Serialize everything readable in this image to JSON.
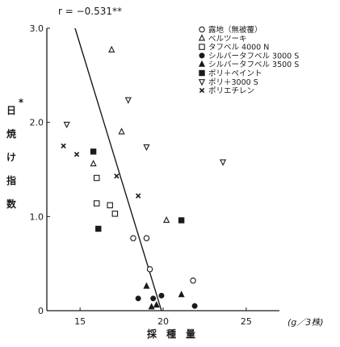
{
  "chart_data": {
    "type": "scatter",
    "xlabel": "採　種　量",
    "xunit": "(g／3株)",
    "ylabel_chars": [
      "日",
      "焼",
      "け",
      "指",
      "数"
    ],
    "ylabel_marker": "*",
    "correlation_label": "r = −0.531**",
    "xlim": [
      13,
      27
    ],
    "ylim": [
      0,
      3.0
    ],
    "xticks": [
      15,
      20,
      25
    ],
    "yticks": [
      0,
      1.0,
      2.0,
      3.0
    ],
    "xtick_labels": [
      "15",
      "20",
      "25"
    ],
    "ytick_labels": [
      "0",
      "1.0",
      "2.0",
      "3.0"
    ],
    "grid": false,
    "legend_position": "top-right",
    "regression_line": {
      "x": [
        14.7,
        19.9
      ],
      "y": [
        3.0,
        0.0
      ]
    },
    "series": [
      {
        "name": "露地（無被覆）",
        "marker": "circle-open",
        "points": [
          [
            19.0,
            0.77
          ],
          [
            18.2,
            0.77
          ],
          [
            19.2,
            0.44
          ],
          [
            21.8,
            0.32
          ]
        ]
      },
      {
        "name": "ベルツーキ",
        "marker": "triangle-open",
        "points": [
          [
            16.9,
            2.77
          ],
          [
            17.5,
            1.9
          ],
          [
            15.8,
            1.56
          ],
          [
            20.2,
            0.96
          ]
        ]
      },
      {
        "name": "タフベル 4000 N",
        "marker": "square-open",
        "points": [
          [
            16.0,
            1.41
          ],
          [
            16.0,
            1.14
          ],
          [
            16.8,
            1.12
          ],
          [
            17.1,
            1.03
          ]
        ]
      },
      {
        "name": "シルバータフベル 3000 S",
        "marker": "circle-filled",
        "points": [
          [
            18.5,
            0.13
          ],
          [
            19.4,
            0.13
          ],
          [
            19.9,
            0.16
          ],
          [
            21.9,
            0.05
          ]
        ]
      },
      {
        "name": "シルバータフベル 3500 S",
        "marker": "triangle-filled",
        "points": [
          [
            19.0,
            0.26
          ],
          [
            21.1,
            0.17
          ],
          [
            19.6,
            0.06
          ],
          [
            19.3,
            0.04
          ]
        ]
      },
      {
        "name": "ポリ＋ペイント",
        "marker": "square-filled",
        "points": [
          [
            15.8,
            1.69
          ],
          [
            16.1,
            0.87
          ],
          [
            21.1,
            0.96
          ]
        ]
      },
      {
        "name": "ポリ＋3000 S",
        "marker": "triangle-down-open",
        "points": [
          [
            14.2,
            1.98
          ],
          [
            17.9,
            2.24
          ],
          [
            19.0,
            1.74
          ],
          [
            23.6,
            1.58
          ]
        ]
      },
      {
        "name": "ポリエチレン",
        "marker": "x-cross",
        "points": [
          [
            14.0,
            1.75
          ],
          [
            14.8,
            1.66
          ],
          [
            17.2,
            1.43
          ],
          [
            18.5,
            1.22
          ]
        ]
      }
    ]
  }
}
